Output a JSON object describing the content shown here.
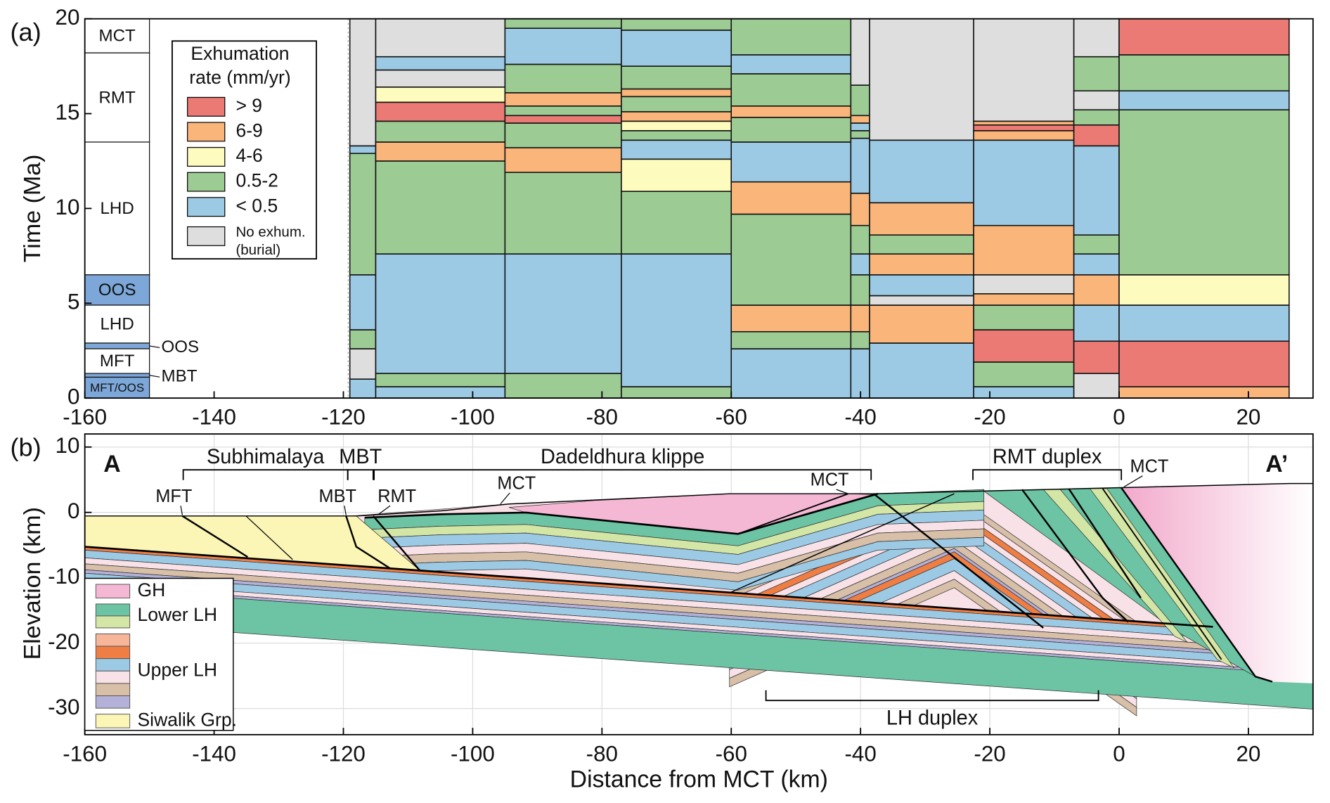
{
  "chart_data": [
    {
      "type": "columns",
      "label": "(a)",
      "y_label": "Time (Ma)",
      "xlim": [
        -160,
        30
      ],
      "xticks": [
        -160,
        -140,
        -120,
        -100,
        -80,
        -60,
        -40,
        -20,
        0,
        20
      ],
      "ylim": [
        0,
        20
      ],
      "yticks": [
        0,
        5,
        10,
        15,
        20
      ],
      "legend": {
        "title": [
          "Exhumation",
          "rate (mm/yr)"
        ]
      },
      "rates": [
        {
          "name": "> 9",
          "color": "#ec7a74"
        },
        {
          "name": "6-9",
          "color": "#f9b57a"
        },
        {
          "name": "4-6",
          "color": "#fdfbbe"
        },
        {
          "name": "0.5-2",
          "color": "#9ccb93"
        },
        {
          "name": "< 0.5",
          "color": "#9ccae4"
        },
        {
          "name": "No exhum.",
          "note": "(burial)",
          "color": "#dedede"
        }
      ],
      "fault_column": {
        "x": [
          -160,
          -150
        ],
        "units": [
          {
            "label": "MCT",
            "from": 18.2,
            "to": 20,
            "color": "#ffffff"
          },
          {
            "label": "RMT",
            "from": 13.5,
            "to": 18.2,
            "color": "#ffffff"
          },
          {
            "label": "LHD",
            "from": 6.5,
            "to": 13.5,
            "color": "#ffffff"
          },
          {
            "label": "OOS",
            "from": 4.9,
            "to": 6.5,
            "color": "#7ca7d8"
          },
          {
            "label": "LHD",
            "from": 2.9,
            "to": 4.9,
            "color": "#ffffff"
          },
          {
            "label": "OOS",
            "from": 2.6,
            "to": 2.9,
            "color": "#7ca7d8",
            "outside": true
          },
          {
            "label": "MFT",
            "from": 1.3,
            "to": 2.6,
            "color": "#ffffff"
          },
          {
            "label": "MBT",
            "from": 1.1,
            "to": 1.3,
            "color": "#7ca7d8",
            "outside": true
          },
          {
            "label": "MFT/OOS",
            "from": 0,
            "to": 1.1,
            "color": "#7ca7d8",
            "small": true
          }
        ]
      },
      "columns": [
        {
          "x": [
            -119,
            -115
          ],
          "segments": [
            [
              0,
              1,
              "< 0.5"
            ],
            [
              1,
              2.6,
              "No exhum."
            ],
            [
              2.6,
              3.6,
              "0.5-2"
            ],
            [
              3.6,
              6.5,
              "< 0.5"
            ],
            [
              6.5,
              12.9,
              "0.5-2"
            ],
            [
              12.9,
              13.3,
              "< 0.5"
            ],
            [
              13.3,
              20,
              "No exhum."
            ]
          ]
        },
        {
          "x": [
            -115,
            -95
          ],
          "segments": [
            [
              0,
              0.6,
              "< 0.5"
            ],
            [
              0.6,
              1.3,
              "0.5-2"
            ],
            [
              1.3,
              7.6,
              "< 0.5"
            ],
            [
              7.6,
              12.5,
              "0.5-2"
            ],
            [
              12.5,
              13.5,
              "6-9"
            ],
            [
              13.5,
              14.6,
              "0.5-2"
            ],
            [
              14.6,
              15.6,
              "> 9"
            ],
            [
              15.6,
              16.4,
              "4-6"
            ],
            [
              16.4,
              17.3,
              "No exhum."
            ],
            [
              17.3,
              18,
              "< 0.5"
            ],
            [
              18,
              20,
              "No exhum."
            ]
          ]
        },
        {
          "x": [
            -95,
            -77
          ],
          "segments": [
            [
              0,
              1.3,
              "0.5-2"
            ],
            [
              1.3,
              7.6,
              "< 0.5"
            ],
            [
              7.6,
              11.9,
              "0.5-2"
            ],
            [
              11.9,
              13.2,
              "6-9"
            ],
            [
              13.2,
              14.5,
              "0.5-2"
            ],
            [
              14.5,
              14.9,
              "> 9"
            ],
            [
              14.9,
              15.4,
              "0.5-2"
            ],
            [
              15.4,
              16.1,
              "6-9"
            ],
            [
              16.1,
              17.6,
              "0.5-2"
            ],
            [
              17.6,
              19.5,
              "< 0.5"
            ],
            [
              19.5,
              20,
              "0.5-2"
            ]
          ]
        },
        {
          "x": [
            -77,
            -60
          ],
          "segments": [
            [
              0,
              0.6,
              "0.5-2"
            ],
            [
              0.6,
              7.6,
              "< 0.5"
            ],
            [
              7.6,
              10.9,
              "0.5-2"
            ],
            [
              10.9,
              12.6,
              "4-6"
            ],
            [
              12.6,
              13.6,
              "< 0.5"
            ],
            [
              13.6,
              14.1,
              "0.5-2"
            ],
            [
              14.1,
              14.6,
              "4-6"
            ],
            [
              14.6,
              15.1,
              "6-9"
            ],
            [
              15.1,
              15.9,
              "0.5-2"
            ],
            [
              15.9,
              16.3,
              "6-9"
            ],
            [
              16.3,
              17.5,
              "0.5-2"
            ],
            [
              17.5,
              19.4,
              "< 0.5"
            ],
            [
              19.4,
              20,
              "0.5-2"
            ]
          ]
        },
        {
          "x": [
            -60,
            -41.5
          ],
          "segments": [
            [
              0,
              2.6,
              "< 0.5"
            ],
            [
              2.6,
              3.5,
              "0.5-2"
            ],
            [
              3.5,
              4.9,
              "6-9"
            ],
            [
              4.9,
              9.7,
              "0.5-2"
            ],
            [
              9.7,
              11.4,
              "6-9"
            ],
            [
              11.4,
              13.5,
              "< 0.5"
            ],
            [
              13.5,
              14.8,
              "0.5-2"
            ],
            [
              14.8,
              15.4,
              "6-9"
            ],
            [
              15.4,
              17.1,
              "0.5-2"
            ],
            [
              17.1,
              18.1,
              "< 0.5"
            ],
            [
              18.1,
              20,
              "0.5-2"
            ]
          ]
        },
        {
          "x": [
            -41.5,
            -38.6
          ],
          "segments": [
            [
              0,
              2.6,
              "< 0.5"
            ],
            [
              2.6,
              3.5,
              "0.5-2"
            ],
            [
              3.5,
              4.9,
              "6-9"
            ],
            [
              4.9,
              6.5,
              "0.5-2"
            ],
            [
              6.5,
              7.6,
              "< 0.5"
            ],
            [
              7.6,
              9.1,
              "0.5-2"
            ],
            [
              9.1,
              10.8,
              "6-9"
            ],
            [
              10.8,
              13.7,
              "< 0.5"
            ],
            [
              13.7,
              14.1,
              "0.5-2"
            ],
            [
              14.1,
              14.5,
              "< 0.5"
            ],
            [
              14.5,
              14.9,
              "6-9"
            ],
            [
              14.9,
              16.5,
              "0.5-2"
            ],
            [
              16.5,
              20,
              "No exhum."
            ]
          ]
        },
        {
          "x": [
            -38.6,
            -22.5
          ],
          "segments": [
            [
              0,
              2.9,
              "< 0.5"
            ],
            [
              2.9,
              4.9,
              "6-9"
            ],
            [
              4.9,
              5.4,
              "No exhum."
            ],
            [
              5.4,
              6.5,
              "< 0.5"
            ],
            [
              6.5,
              7.6,
              "6-9"
            ],
            [
              7.6,
              8.6,
              "0.5-2"
            ],
            [
              8.6,
              10.3,
              "6-9"
            ],
            [
              10.3,
              13.6,
              "< 0.5"
            ],
            [
              13.6,
              20,
              "No exhum."
            ]
          ]
        },
        {
          "x": [
            -22.5,
            -7
          ],
          "segments": [
            [
              0,
              0.6,
              "< 0.5"
            ],
            [
              0.6,
              1.9,
              "0.5-2"
            ],
            [
              1.9,
              3.6,
              "> 9"
            ],
            [
              3.6,
              4.9,
              "0.5-2"
            ],
            [
              4.9,
              5.5,
              "6-9"
            ],
            [
              5.5,
              6.5,
              "No exhum."
            ],
            [
              6.5,
              9.1,
              "6-9"
            ],
            [
              9.1,
              13.6,
              "< 0.5"
            ],
            [
              13.6,
              14.1,
              "6-9"
            ],
            [
              14.1,
              14.4,
              "> 9"
            ],
            [
              14.4,
              14.6,
              "6-9"
            ],
            [
              14.6,
              20,
              "No exhum."
            ]
          ]
        },
        {
          "x": [
            -7,
            0
          ],
          "segments": [
            [
              0,
              1.3,
              "No exhum."
            ],
            [
              1.3,
              3,
              "> 9"
            ],
            [
              3,
              4.9,
              "< 0.5"
            ],
            [
              4.9,
              6.5,
              "6-9"
            ],
            [
              6.5,
              7.6,
              "< 0.5"
            ],
            [
              7.6,
              8.6,
              "0.5-2"
            ],
            [
              8.6,
              13.3,
              "< 0.5"
            ],
            [
              13.3,
              14.4,
              "> 9"
            ],
            [
              14.4,
              15.2,
              "0.5-2"
            ],
            [
              15.2,
              16.2,
              "No exhum."
            ],
            [
              16.2,
              18,
              "0.5-2"
            ],
            [
              18,
              20,
              "No exhum."
            ]
          ]
        },
        {
          "x": [
            0,
            26.3
          ],
          "segments": [
            [
              0,
              0.6,
              "6-9"
            ],
            [
              0.6,
              3,
              "> 9"
            ],
            [
              3,
              4.9,
              "< 0.5"
            ],
            [
              4.9,
              6.5,
              "4-6"
            ],
            [
              6.5,
              15.2,
              "0.5-2"
            ],
            [
              15.2,
              16.2,
              "< 0.5"
            ],
            [
              16.2,
              18.1,
              "0.5-2"
            ],
            [
              18.1,
              20,
              "> 9"
            ]
          ]
        }
      ]
    },
    {
      "type": "cross-section",
      "label": "(b)",
      "x_label": "Distance from MCT (km)",
      "y_label": "Elevation (km)",
      "xlim": [
        -160,
        30
      ],
      "xticks": [
        -160,
        -140,
        -120,
        -100,
        -80,
        -60,
        -40,
        -20,
        0,
        20
      ],
      "ylim": [
        -34,
        12
      ],
      "yticks": [
        -30,
        -20,
        -10,
        0,
        10
      ],
      "grid": true,
      "section_ends": [
        "A",
        "A’"
      ],
      "regions": [
        "Subhimalaya",
        "MBT",
        "Dadeldhura klippe",
        "RMT duplex",
        "LH duplex"
      ],
      "faults": [
        "MFT",
        "MBT",
        "RMT",
        "MCT",
        "MCT",
        "MCT"
      ],
      "legend": [
        {
          "name": "GH",
          "colors": [
            "#f4b8d4"
          ]
        },
        {
          "name": "Lower LH",
          "colors": [
            "#6cc4a4",
            "#d4e6a5"
          ]
        },
        {
          "name": "Upper LH",
          "colors": [
            "#f7b59a",
            "#ef7e45",
            "#9ccae4",
            "#f9e1e8",
            "#d7bfa8",
            "#b4b1d8"
          ]
        },
        {
          "name": "Siwalik Grp.",
          "colors": [
            "#fbf5b6"
          ]
        }
      ]
    }
  ]
}
